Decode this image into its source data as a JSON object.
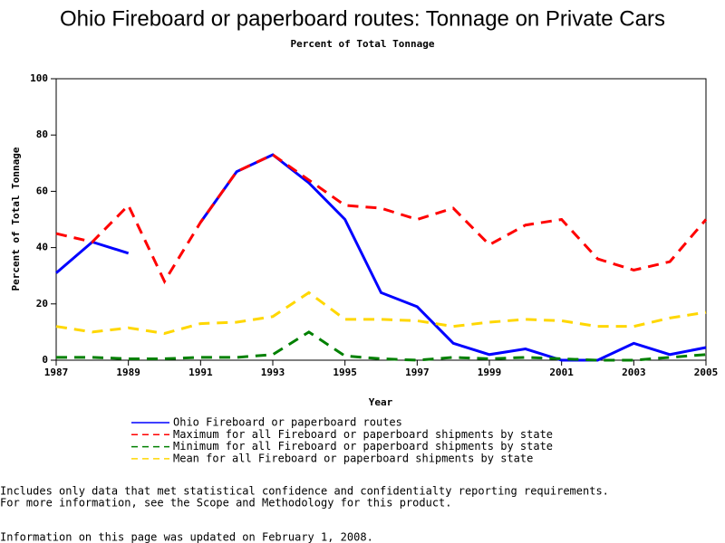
{
  "chart_data": {
    "type": "line",
    "title": "Ohio Fireboard or paperboard routes: Tonnage on Private Cars",
    "subtitle": "Percent of Total Tonnage",
    "x_label": "Year",
    "y_label": "Percent of Total Tonnage",
    "x": [
      1987,
      1988,
      1989,
      1990,
      1991,
      1992,
      1993,
      1994,
      1995,
      1996,
      1997,
      1998,
      1999,
      2000,
      2001,
      2002,
      2003,
      2004,
      2005
    ],
    "series": [
      {
        "name": "Ohio Fireboard or paperboard routes",
        "color": "#0000ff",
        "dash": false,
        "values": [
          31,
          42,
          38,
          null,
          49,
          67,
          73,
          63,
          50,
          24,
          19,
          6,
          2,
          4,
          0,
          0,
          6,
          2,
          4.5
        ]
      },
      {
        "name": "Maximum for all Fireboard or paperboard shipments by state",
        "color": "#ff0000",
        "dash": true,
        "values": [
          45,
          42,
          55,
          28,
          49,
          67,
          73,
          64,
          55,
          54,
          50,
          54,
          41,
          48,
          50,
          36,
          32,
          35,
          50
        ]
      },
      {
        "name": "Minimum for all Fireboard or paperboard shipments by state",
        "color": "#008000",
        "dash": true,
        "values": [
          1,
          1,
          0.5,
          0.5,
          1,
          1,
          2,
          10,
          1.5,
          0.5,
          0,
          1,
          0.5,
          1,
          0.5,
          0,
          0,
          1,
          2
        ]
      },
      {
        "name": "Mean for all Fireboard or paperboard shipments by state",
        "color": "#ffd700",
        "dash": true,
        "values": [
          12,
          10,
          11.5,
          9.5,
          13,
          13.5,
          15.5,
          24,
          14.5,
          14.5,
          14,
          12,
          13.5,
          14.5,
          14,
          12,
          12,
          15,
          17
        ]
      }
    ],
    "xlim": [
      1987,
      2005
    ],
    "xticks": [
      1987,
      1989,
      1991,
      1993,
      1995,
      1997,
      1999,
      2001,
      2003,
      2005
    ],
    "ylim": [
      0,
      100
    ],
    "yticks": [
      0,
      20,
      40,
      60,
      80,
      100
    ],
    "notes": [
      "Includes only data that met statistical confidence and confidentialty reporting requirements.",
      "For more information, see the Scope and Methodology for this product."
    ],
    "footer": "Information on this page was updated on February 1, 2008."
  }
}
